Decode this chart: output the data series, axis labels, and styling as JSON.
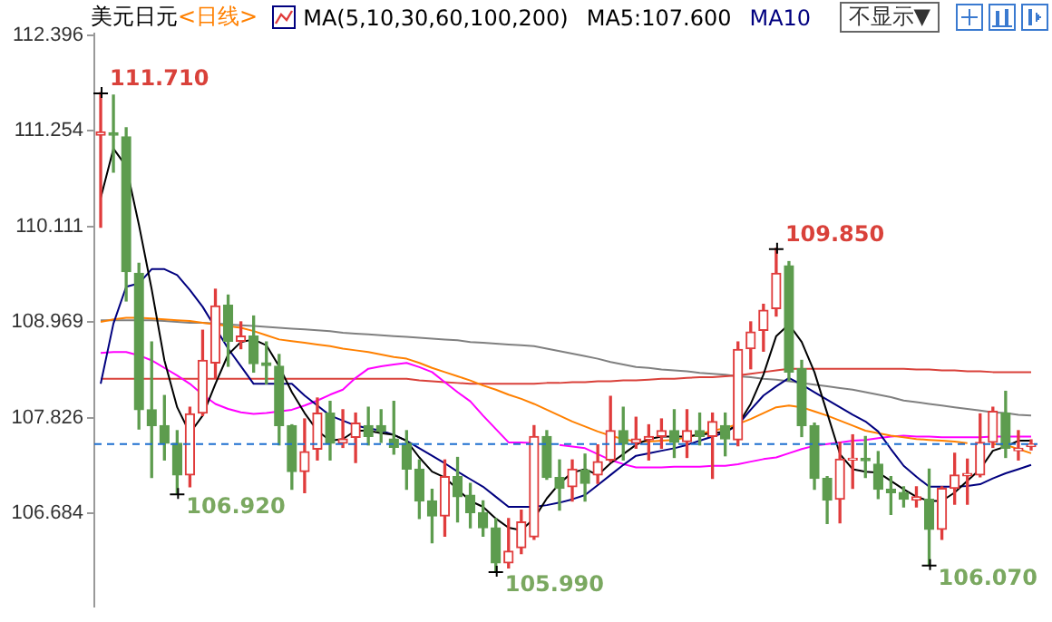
{
  "chart_data": {
    "type": "candlestick",
    "title": "美元日元",
    "subtitle": "<日线>",
    "categories": [
      null,
      null,
      null,
      null,
      null,
      null,
      null,
      null,
      null,
      null,
      null,
      null,
      null,
      null,
      null,
      null,
      null,
      null,
      null,
      null,
      null,
      null,
      null,
      null,
      null,
      null,
      null,
      null,
      null,
      null,
      null,
      null,
      null,
      null,
      null,
      null,
      null,
      null,
      null,
      null,
      null,
      null,
      null,
      null,
      null,
      null,
      null,
      null,
      null,
      null,
      null,
      null,
      null,
      null,
      null,
      null,
      null,
      null,
      null,
      null,
      null,
      null,
      null,
      null,
      null,
      null,
      null,
      null,
      null,
      null,
      null,
      null,
      null,
      null
    ],
    "ohlc": [
      [
        111.2,
        111.71,
        110.1,
        111.24
      ],
      [
        111.23,
        111.68,
        110.76,
        111.2
      ],
      [
        111.18,
        111.29,
        109.22,
        109.57
      ],
      [
        109.55,
        109.67,
        107.69,
        107.92
      ],
      [
        107.92,
        108.73,
        107.11,
        107.73
      ],
      [
        107.73,
        108.09,
        107.32,
        107.52
      ],
      [
        107.52,
        107.67,
        106.92,
        107.14
      ],
      [
        107.14,
        107.95,
        107.0,
        107.87
      ],
      [
        107.88,
        108.87,
        107.85,
        108.51
      ],
      [
        108.48,
        109.36,
        108.3,
        109.16
      ],
      [
        109.17,
        109.29,
        108.44,
        108.74
      ],
      [
        108.74,
        108.97,
        108.65,
        108.8
      ],
      [
        108.8,
        109.04,
        108.37,
        108.47
      ],
      [
        108.48,
        108.73,
        108.23,
        108.45
      ],
      [
        108.44,
        108.58,
        107.5,
        107.73
      ],
      [
        107.73,
        107.74,
        106.97,
        107.18
      ],
      [
        107.18,
        107.81,
        106.93,
        107.42
      ],
      [
        107.45,
        108.06,
        107.32,
        107.88
      ],
      [
        107.88,
        108.02,
        107.32,
        107.52
      ],
      [
        107.52,
        107.92,
        107.47,
        107.57
      ],
      [
        107.59,
        107.88,
        107.29,
        107.76
      ],
      [
        107.73,
        107.95,
        107.5,
        107.6
      ],
      [
        107.73,
        107.92,
        107.53,
        107.66
      ],
      [
        107.57,
        108.02,
        107.39,
        107.47
      ],
      [
        107.52,
        107.67,
        106.97,
        107.21
      ],
      [
        107.21,
        107.32,
        106.62,
        106.83
      ],
      [
        106.83,
        106.97,
        106.33,
        106.65
      ],
      [
        106.65,
        107.32,
        106.41,
        107.12
      ],
      [
        107.12,
        107.35,
        106.58,
        106.88
      ],
      [
        106.9,
        107.04,
        106.51,
        106.69
      ],
      [
        106.69,
        106.83,
        106.41,
        106.51
      ],
      [
        106.51,
        106.62,
        105.99,
        106.09
      ],
      [
        106.09,
        106.62,
        106.03,
        106.23
      ],
      [
        106.27,
        106.72,
        106.2,
        106.58
      ],
      [
        106.4,
        107.73,
        106.37,
        107.6
      ],
      [
        107.6,
        107.67,
        107.09,
        107.11
      ],
      [
        107.11,
        107.32,
        106.72,
        106.98
      ],
      [
        107.0,
        107.32,
        106.83,
        107.21
      ],
      [
        107.2,
        107.39,
        106.83,
        107.04
      ],
      [
        107.14,
        107.5,
        107.04,
        107.3
      ],
      [
        107.32,
        108.08,
        107.3,
        107.67
      ],
      [
        107.67,
        107.95,
        107.32,
        107.51
      ],
      [
        107.52,
        107.83,
        107.46,
        107.57
      ],
      [
        107.56,
        107.74,
        107.32,
        107.6
      ],
      [
        107.6,
        107.81,
        107.46,
        107.67
      ],
      [
        107.67,
        107.92,
        107.35,
        107.53
      ],
      [
        107.54,
        107.92,
        107.35,
        107.67
      ],
      [
        107.67,
        107.88,
        107.5,
        107.6
      ],
      [
        107.6,
        107.88,
        107.1,
        107.78
      ],
      [
        107.73,
        107.88,
        107.37,
        107.57
      ],
      [
        107.56,
        108.73,
        107.49,
        108.64
      ],
      [
        108.65,
        108.97,
        108.41,
        108.85
      ],
      [
        108.87,
        109.18,
        108.62,
        109.11
      ],
      [
        109.13,
        109.85,
        109.04,
        109.55
      ],
      [
        109.64,
        109.69,
        108.27,
        108.37
      ],
      [
        108.41,
        108.51,
        107.6,
        107.73
      ],
      [
        107.73,
        107.76,
        106.97,
        107.1
      ],
      [
        107.1,
        107.12,
        106.56,
        106.84
      ],
      [
        106.85,
        107.53,
        106.57,
        107.33
      ],
      [
        107.32,
        107.62,
        106.98,
        107.34
      ],
      [
        107.34,
        107.6,
        107.11,
        107.31
      ],
      [
        107.27,
        107.42,
        106.86,
        106.97
      ],
      [
        106.97,
        107.12,
        106.67,
        106.93
      ],
      [
        106.93,
        107.0,
        106.76,
        106.85
      ],
      [
        106.84,
        107.0,
        106.76,
        106.88
      ],
      [
        106.85,
        107.21,
        106.07,
        106.49
      ],
      [
        106.49,
        107.0,
        106.37,
        106.98
      ],
      [
        106.98,
        107.4,
        106.79,
        107.14
      ],
      [
        107.13,
        107.33,
        106.79,
        107.16
      ],
      [
        107.14,
        107.87,
        107.12,
        107.53
      ],
      [
        107.53,
        107.95,
        107.47,
        107.9
      ],
      [
        107.88,
        108.14,
        107.35,
        107.46
      ],
      [
        107.43,
        107.67,
        107.32,
        107.46
      ],
      [
        107.48,
        107.56,
        107.44,
        107.51
      ]
    ],
    "series": [
      {
        "type": "line",
        "color": "#000000",
        "values": [
          110.45,
          111.04,
          110.83,
          110.13,
          109.36,
          108.51,
          107.95,
          107.64,
          107.85,
          108.23,
          108.58,
          108.73,
          108.76,
          108.69,
          108.44,
          108.13,
          107.88,
          107.67,
          107.55,
          107.57,
          107.67,
          107.67,
          107.64,
          107.62,
          107.55,
          107.35,
          107.18,
          107.11,
          106.97,
          106.83,
          106.76,
          106.62,
          106.51,
          106.48,
          106.62,
          106.86,
          107.04,
          107.17,
          107.21,
          107.14,
          107.28,
          107.39,
          107.5,
          107.57,
          107.6,
          107.6,
          107.6,
          107.62,
          107.64,
          107.66,
          107.74,
          107.99,
          108.34,
          108.8,
          108.94,
          108.73,
          108.37,
          107.88,
          107.39,
          107.21,
          107.18,
          107.17,
          107.07,
          106.97,
          106.88,
          106.83,
          106.83,
          106.93,
          107.07,
          107.21,
          107.43,
          107.48,
          107.55,
          107.55
        ]
      },
      {
        "type": "line",
        "color": "#00007f",
        "values": [
          108.23,
          108.95,
          109.39,
          109.43,
          109.6,
          109.6,
          109.53,
          109.35,
          109.15,
          108.9,
          108.65,
          108.44,
          108.23,
          108.23,
          108.23,
          108.23,
          108.09,
          107.97,
          107.85,
          107.79,
          107.73,
          107.7,
          107.67,
          107.62,
          107.55,
          107.46,
          107.37,
          107.28,
          107.18,
          107.09,
          107.0,
          106.88,
          106.76,
          106.76,
          106.76,
          106.78,
          106.81,
          106.85,
          106.9,
          107.02,
          107.14,
          107.26,
          107.37,
          107.4,
          107.43,
          107.46,
          107.5,
          107.55,
          107.6,
          107.65,
          107.74,
          107.92,
          108.09,
          108.2,
          108.3,
          108.22,
          108.13,
          108.04,
          107.95,
          107.86,
          107.78,
          107.66,
          107.45,
          107.25,
          107.12,
          107.0,
          107.0,
          107.0,
          107.01,
          107.03,
          107.1,
          107.16,
          107.21,
          107.26
        ]
      },
      {
        "type": "line",
        "color": "#ff8000",
        "values": [
          108.97,
          109.0,
          109.02,
          109.02,
          109.01,
          109.0,
          108.99,
          108.98,
          108.96,
          108.94,
          108.92,
          108.9,
          108.86,
          108.81,
          108.76,
          108.74,
          108.72,
          108.7,
          108.68,
          108.65,
          108.63,
          108.61,
          108.58,
          108.55,
          108.53,
          108.48,
          108.42,
          108.37,
          108.32,
          108.27,
          108.21,
          108.16,
          108.1,
          108.05,
          107.99,
          107.92,
          107.85,
          107.78,
          107.72,
          107.66,
          107.61,
          107.57,
          107.54,
          107.54,
          107.55,
          107.56,
          107.59,
          107.63,
          107.67,
          107.7,
          107.75,
          107.81,
          107.88,
          107.95,
          107.97,
          107.95,
          107.9,
          107.85,
          107.79,
          107.73,
          107.67,
          107.64,
          107.61,
          107.59,
          107.57,
          107.56,
          107.55,
          107.54,
          107.52,
          null,
          107.51,
          107.5,
          107.45,
          107.4
        ]
      },
      {
        "type": "line",
        "color": "#ff00ff",
        "values": [
          108.6,
          108.61,
          108.61,
          108.57,
          108.51,
          108.42,
          108.33,
          108.23,
          108.1,
          107.99,
          107.93,
          107.89,
          107.87,
          107.88,
          107.9,
          107.92,
          107.97,
          108.03,
          108.1,
          108.16,
          108.3,
          108.41,
          108.44,
          108.46,
          108.48,
          108.43,
          108.37,
          108.25,
          108.13,
          108.02,
          107.85,
          107.69,
          107.53,
          107.53,
          107.52,
          null,
          107.5,
          107.48,
          107.46,
          107.39,
          107.32,
          107.27,
          107.23,
          107.23,
          107.23,
          107.24,
          107.24,
          107.24,
          107.25,
          107.25,
          107.27,
          107.3,
          107.33,
          107.35,
          107.4,
          107.45,
          107.49,
          107.51,
          107.53,
          107.55,
          107.56,
          107.58,
          107.6,
          107.61,
          107.6,
          107.6,
          107.59,
          107.59,
          107.59,
          107.59,
          107.6,
          107.6,
          107.6,
          107.6
        ]
      },
      {
        "type": "line",
        "color": "#d9413a",
        "values": [
          108.29,
          108.29,
          108.29,
          108.29,
          108.29,
          108.29,
          108.29,
          108.29,
          108.29,
          108.29,
          108.29,
          108.29,
          108.29,
          108.29,
          108.29,
          108.29,
          108.29,
          108.29,
          108.29,
          108.29,
          108.29,
          108.29,
          108.29,
          108.29,
          108.29,
          108.27,
          108.26,
          108.25,
          108.24,
          108.23,
          108.23,
          108.23,
          108.23,
          108.23,
          108.23,
          108.24,
          108.24,
          108.25,
          108.25,
          108.26,
          108.26,
          108.27,
          108.27,
          108.28,
          108.29,
          108.29,
          108.3,
          108.31,
          108.31,
          108.32,
          108.33,
          108.35,
          108.37,
          108.39,
          108.41,
          108.41,
          108.41,
          108.41,
          108.41,
          108.41,
          108.41,
          108.41,
          108.41,
          108.41,
          108.4,
          108.4,
          108.39,
          108.39,
          108.38,
          108.38,
          108.37,
          108.37,
          108.37,
          108.37
        ]
      },
      {
        "type": "line",
        "color": "#808080",
        "values": [
          108.99,
          108.99,
          108.99,
          108.99,
          108.99,
          108.98,
          108.97,
          108.96,
          108.96,
          108.95,
          108.94,
          108.93,
          108.92,
          108.91,
          108.9,
          108.89,
          108.88,
          108.87,
          108.86,
          108.84,
          108.83,
          108.82,
          108.81,
          108.8,
          108.79,
          108.78,
          108.77,
          108.76,
          108.75,
          108.73,
          108.72,
          108.71,
          108.7,
          108.69,
          108.68,
          108.65,
          108.62,
          108.59,
          108.56,
          108.53,
          108.49,
          108.46,
          108.43,
          108.42,
          108.4,
          108.39,
          108.38,
          108.36,
          108.35,
          108.34,
          108.32,
          108.31,
          108.29,
          108.28,
          108.26,
          108.24,
          108.22,
          108.2,
          108.18,
          108.16,
          108.13,
          108.1,
          108.07,
          108.03,
          108.01,
          107.99,
          107.97,
          107.95,
          107.93,
          107.91,
          107.89,
          107.88,
          107.86,
          107.85
        ]
      }
    ],
    "ylim": [
      105.57,
      112.63
    ],
    "yticks": [
      112.396,
      111.254,
      110.111,
      108.969,
      107.826,
      106.684
    ],
    "tick_labels": "y",
    "grid": false,
    "legend": false,
    "ref_lines": [
      {
        "axis": "y",
        "value": 107.51,
        "color": "#1e6fd0",
        "line_style": "dashed"
      }
    ],
    "annotations": [
      "MA(5,10,30,60,100,200)",
      "MA5:107.600",
      "MA10",
      "不显示▼",
      "111.710",
      "106.920",
      "105.990",
      "109.850",
      "106.070"
    ]
  }
}
